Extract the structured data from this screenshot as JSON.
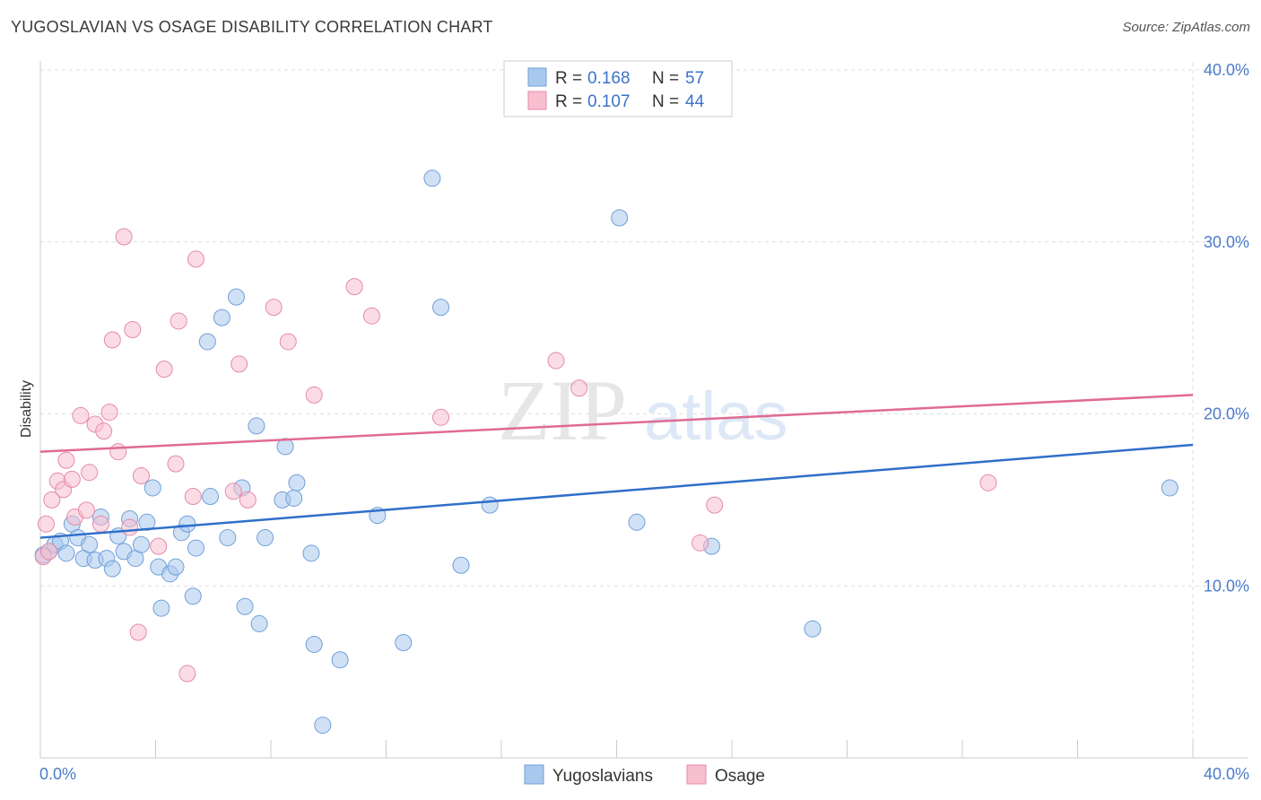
{
  "title": "YUGOSLAVIAN VS OSAGE DISABILITY CORRELATION CHART",
  "source": "Source: ZipAtlas.com",
  "watermark": {
    "zip": "ZIP",
    "atlas": "atlas"
  },
  "chart_data": {
    "type": "scatter",
    "ylabel": "Disability",
    "xlabel": "",
    "xlim": [
      0,
      40
    ],
    "ylim": [
      0,
      40
    ],
    "x_tick_labels": [
      "0.0%",
      "40.0%"
    ],
    "y_tick_labels": [
      {
        "value": 10,
        "label": "10.0%"
      },
      {
        "value": 20,
        "label": "20.0%"
      },
      {
        "value": 30,
        "label": "30.0%"
      },
      {
        "value": 40,
        "label": "40.0%"
      }
    ],
    "legend": {
      "rows": [
        {
          "r_label": "R =",
          "r_value": "0.168",
          "n_label": "N =",
          "n_value": "57"
        },
        {
          "r_label": "R =",
          "r_value": "0.107",
          "n_label": "N =",
          "n_value": "44"
        }
      ]
    },
    "series": [
      {
        "name": "Yugoslavians",
        "color": "#a9c8ee",
        "stroke": "#6f9fd8",
        "line_color": "#2f6fca",
        "trend": {
          "x0": 0,
          "y0": 12.8,
          "x1": 40,
          "y1": 18.2
        },
        "points": [
          [
            0.1,
            11.8
          ],
          [
            0.3,
            12.0
          ],
          [
            0.5,
            12.4
          ],
          [
            0.7,
            12.6
          ],
          [
            0.9,
            11.9
          ],
          [
            1.1,
            13.6
          ],
          [
            1.3,
            12.8
          ],
          [
            1.5,
            11.6
          ],
          [
            1.7,
            12.4
          ],
          [
            1.9,
            11.5
          ],
          [
            2.1,
            14.0
          ],
          [
            2.3,
            11.6
          ],
          [
            2.5,
            11.0
          ],
          [
            2.7,
            12.9
          ],
          [
            2.9,
            12.0
          ],
          [
            3.1,
            13.9
          ],
          [
            3.3,
            11.6
          ],
          [
            3.5,
            12.4
          ],
          [
            3.7,
            13.7
          ],
          [
            3.9,
            15.7
          ],
          [
            4.1,
            11.1
          ],
          [
            4.2,
            8.7
          ],
          [
            4.5,
            10.7
          ],
          [
            4.7,
            11.1
          ],
          [
            4.9,
            13.1
          ],
          [
            5.1,
            13.6
          ],
          [
            5.3,
            9.4
          ],
          [
            5.4,
            12.2
          ],
          [
            5.8,
            24.2
          ],
          [
            5.9,
            15.2
          ],
          [
            6.3,
            25.6
          ],
          [
            6.5,
            12.8
          ],
          [
            6.8,
            26.8
          ],
          [
            7.0,
            15.7
          ],
          [
            7.1,
            8.8
          ],
          [
            7.5,
            19.3
          ],
          [
            7.6,
            7.8
          ],
          [
            7.8,
            12.8
          ],
          [
            8.4,
            15.0
          ],
          [
            8.5,
            18.1
          ],
          [
            8.8,
            15.1
          ],
          [
            8.9,
            16.0
          ],
          [
            9.4,
            11.9
          ],
          [
            9.5,
            6.6
          ],
          [
            10.4,
            5.7
          ],
          [
            9.8,
            1.9
          ],
          [
            11.7,
            14.1
          ],
          [
            12.6,
            6.7
          ],
          [
            13.6,
            33.7
          ],
          [
            13.9,
            26.2
          ],
          [
            14.6,
            11.2
          ],
          [
            15.6,
            14.7
          ],
          [
            20.1,
            31.4
          ],
          [
            20.7,
            13.7
          ],
          [
            23.3,
            12.3
          ],
          [
            26.8,
            7.5
          ],
          [
            39.2,
            15.7
          ]
        ]
      },
      {
        "name": "Osage",
        "color": "#f7bfd0",
        "stroke": "#e58aa8",
        "line_color": "#e06a93",
        "trend": {
          "x0": 0,
          "y0": 17.8,
          "x1": 40,
          "y1": 21.1
        },
        "points": [
          [
            0.2,
            13.6
          ],
          [
            0.4,
            15.0
          ],
          [
            0.6,
            16.1
          ],
          [
            0.8,
            15.6
          ],
          [
            0.9,
            17.3
          ],
          [
            1.1,
            16.2
          ],
          [
            1.2,
            14.0
          ],
          [
            1.4,
            19.9
          ],
          [
            1.6,
            14.4
          ],
          [
            1.7,
            16.6
          ],
          [
            1.9,
            19.4
          ],
          [
            2.1,
            13.6
          ],
          [
            2.2,
            19.0
          ],
          [
            2.4,
            20.1
          ],
          [
            2.5,
            24.3
          ],
          [
            2.7,
            17.8
          ],
          [
            2.9,
            30.3
          ],
          [
            3.1,
            13.4
          ],
          [
            3.2,
            24.9
          ],
          [
            3.4,
            7.3
          ],
          [
            3.5,
            16.4
          ],
          [
            4.1,
            12.3
          ],
          [
            4.3,
            22.6
          ],
          [
            4.7,
            17.1
          ],
          [
            4.8,
            25.4
          ],
          [
            5.1,
            4.9
          ],
          [
            5.3,
            15.2
          ],
          [
            5.4,
            29.0
          ],
          [
            6.7,
            15.5
          ],
          [
            6.9,
            22.9
          ],
          [
            7.2,
            15.0
          ],
          [
            8.1,
            26.2
          ],
          [
            8.6,
            24.2
          ],
          [
            9.5,
            21.1
          ],
          [
            10.9,
            27.4
          ],
          [
            11.5,
            25.7
          ],
          [
            13.9,
            19.8
          ],
          [
            17.9,
            23.1
          ],
          [
            18.7,
            21.5
          ],
          [
            22.9,
            12.5
          ],
          [
            23.4,
            14.7
          ],
          [
            32.9,
            16.0
          ],
          [
            0.1,
            11.7
          ],
          [
            0.3,
            12.0
          ]
        ]
      }
    ]
  }
}
